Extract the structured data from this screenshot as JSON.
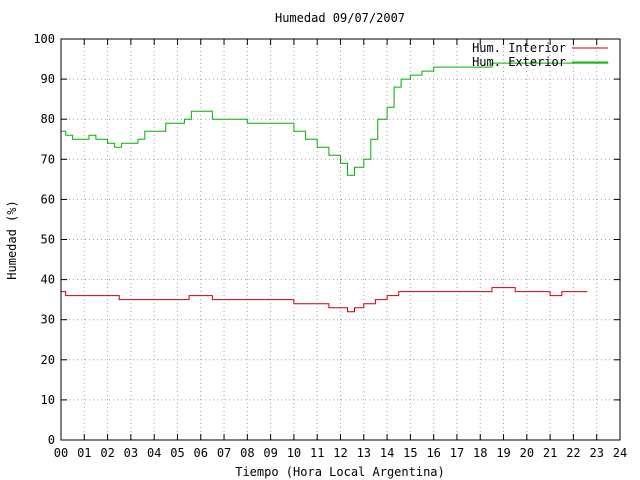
{
  "chart_data": {
    "type": "line",
    "title": "Humedad 09/07/2007",
    "xlabel": "Tiempo (Hora Local Argentina)",
    "ylabel": "Humedad (%)",
    "xlim": [
      0,
      24
    ],
    "ylim": [
      0,
      100
    ],
    "x_ticks": [
      "00",
      "01",
      "02",
      "03",
      "04",
      "05",
      "06",
      "07",
      "08",
      "09",
      "10",
      "11",
      "12",
      "13",
      "14",
      "15",
      "16",
      "17",
      "18",
      "19",
      "20",
      "21",
      "22",
      "23",
      "24"
    ],
    "y_ticks": [
      0,
      10,
      20,
      30,
      40,
      50,
      60,
      70,
      80,
      90,
      100
    ],
    "grid": true,
    "legend_position": "top-right",
    "series": [
      {
        "name": "Hum. Interior",
        "color": "#cc0000",
        "x": [
          0,
          0.2,
          0.5,
          1,
          1.5,
          2,
          2.5,
          3,
          3.5,
          4,
          4.5,
          5,
          5.5,
          6,
          6.5,
          7,
          7.5,
          8,
          8.5,
          9,
          9.5,
          10,
          10.5,
          11,
          11.5,
          12,
          12.3,
          12.6,
          13,
          13.5,
          14,
          14.5,
          15,
          15.5,
          16,
          16.5,
          17,
          17.5,
          18,
          18.5,
          19,
          19.5,
          20,
          20.5,
          21,
          21.5,
          22,
          22.6
        ],
        "y": [
          37,
          36,
          36,
          36,
          36,
          36,
          35,
          35,
          35,
          35,
          35,
          35,
          36,
          36,
          35,
          35,
          35,
          35,
          35,
          35,
          35,
          34,
          34,
          34,
          33,
          33,
          32,
          33,
          34,
          35,
          36,
          37,
          37,
          37,
          37,
          37,
          37,
          37,
          37,
          38,
          38,
          37,
          37,
          37,
          36,
          37,
          37,
          37
        ]
      },
      {
        "name": "Hum. Exterior",
        "color": "#00b000",
        "x": [
          0,
          0.2,
          0.5,
          1,
          1.2,
          1.5,
          2,
          2.3,
          2.6,
          3,
          3.3,
          3.6,
          4,
          4.5,
          5,
          5.3,
          5.6,
          6,
          6.5,
          7,
          7.5,
          8,
          8.5,
          9,
          9.5,
          10,
          10.5,
          11,
          11.5,
          12,
          12.3,
          12.6,
          13,
          13.3,
          13.6,
          14,
          14.3,
          14.6,
          15,
          15.5,
          16,
          16.5,
          17,
          17.5,
          18,
          18.5,
          19,
          19.5,
          20,
          20.5,
          21,
          21.5,
          22,
          22.5,
          23,
          23.5
        ],
        "y": [
          77,
          76,
          75,
          75,
          76,
          75,
          74,
          73,
          74,
          74,
          75,
          77,
          77,
          79,
          79,
          80,
          82,
          82,
          80,
          80,
          80,
          79,
          79,
          79,
          79,
          77,
          75,
          73,
          71,
          69,
          66,
          68,
          70,
          75,
          80,
          83,
          88,
          90,
          91,
          92,
          93,
          93,
          93,
          93,
          93,
          94,
          94,
          94,
          94,
          94,
          94,
          94,
          94,
          94,
          94,
          94
        ]
      }
    ]
  }
}
